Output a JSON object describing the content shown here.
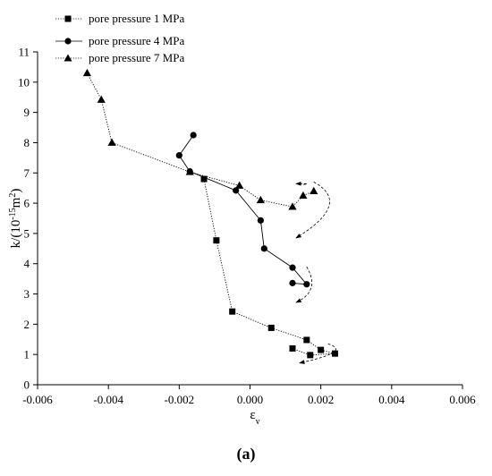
{
  "caption": "(a)",
  "chart_data": {
    "type": "scatter",
    "xlabel": "ε",
    "xlabel_sub": "v",
    "ylabel_main": "k/(10",
    "ylabel_sup1": "-15",
    "ylabel_mid": "m",
    "ylabel_sup2": "2",
    "ylabel_end": ")",
    "xlim": [
      -0.006,
      0.006
    ],
    "ylim": [
      0,
      11
    ],
    "xticks": [
      -0.006,
      -0.004,
      -0.002,
      0.0,
      0.002,
      0.004,
      0.006
    ],
    "xtick_labels": [
      "-0.006",
      "-0.004",
      "-0.002",
      "0.000",
      "0.002",
      "0.004",
      "0.006"
    ],
    "yticks": [
      0,
      1,
      2,
      3,
      4,
      5,
      6,
      7,
      8,
      9,
      10,
      11
    ],
    "ytick_labels": [
      "0",
      "1",
      "2",
      "3",
      "4",
      "5",
      "6",
      "7",
      "8",
      "9",
      "10",
      "11"
    ],
    "legend_position": "top-left",
    "series": [
      {
        "name": "pore pressure 1 MPa",
        "marker": "square",
        "line_style": "dotted",
        "points": [
          [
            -0.0013,
            6.8
          ],
          [
            -0.00095,
            4.77
          ],
          [
            -0.0005,
            2.42
          ],
          [
            0.0006,
            1.88
          ],
          [
            0.0016,
            1.48
          ],
          [
            0.002,
            1.15
          ],
          [
            0.0024,
            1.03
          ],
          [
            0.0017,
            0.98
          ],
          [
            0.0012,
            1.2
          ]
        ]
      },
      {
        "name": "pore pressure 4 MPa",
        "marker": "circle",
        "line_style": "solid",
        "points": [
          [
            -0.0016,
            8.25
          ],
          [
            -0.002,
            7.58
          ],
          [
            -0.0017,
            7.05
          ],
          [
            -0.0004,
            6.42
          ],
          [
            0.0003,
            5.43
          ],
          [
            0.0004,
            4.5
          ],
          [
            0.0012,
            3.87
          ],
          [
            0.0016,
            3.32
          ],
          [
            0.0012,
            3.36
          ]
        ]
      },
      {
        "name": "pore pressure 7 MPa",
        "marker": "triangle",
        "line_style": "dotted",
        "points": [
          [
            -0.0046,
            10.3
          ],
          [
            -0.0042,
            9.42
          ],
          [
            -0.0039,
            8.0
          ],
          [
            -0.0017,
            7.03
          ],
          [
            -0.0003,
            6.58
          ],
          [
            0.0003,
            6.1
          ],
          [
            0.0012,
            5.88
          ],
          [
            0.0015,
            6.25
          ],
          [
            0.0018,
            6.4
          ]
        ]
      }
    ],
    "arrows": [
      {
        "series": "pore pressure 1 MPa",
        "from": [
          0.0022,
          1.35
        ],
        "via": [
          0.0029,
          1.1
        ],
        "to": [
          0.0014,
          0.72
        ]
      },
      {
        "series": "pore pressure 4 MPa",
        "from": [
          0.0016,
          3.9
        ],
        "via": [
          0.002,
          3.1
        ],
        "to": [
          0.0013,
          2.72
        ]
      },
      {
        "series": "pore pressure 7 MPa",
        "from": [
          0.0018,
          6.7
        ],
        "via": [
          0.0029,
          6.0
        ],
        "to": [
          0.0013,
          4.85
        ]
      },
      {
        "series": "pore pressure 7 MPa",
        "from": [
          0.0015,
          6.62
        ],
        "via": [
          0.0018,
          6.65
        ],
        "to": [
          0.0013,
          6.64
        ]
      }
    ],
    "colors": {
      "ink": "#000000",
      "background": "#ffffff"
    }
  }
}
